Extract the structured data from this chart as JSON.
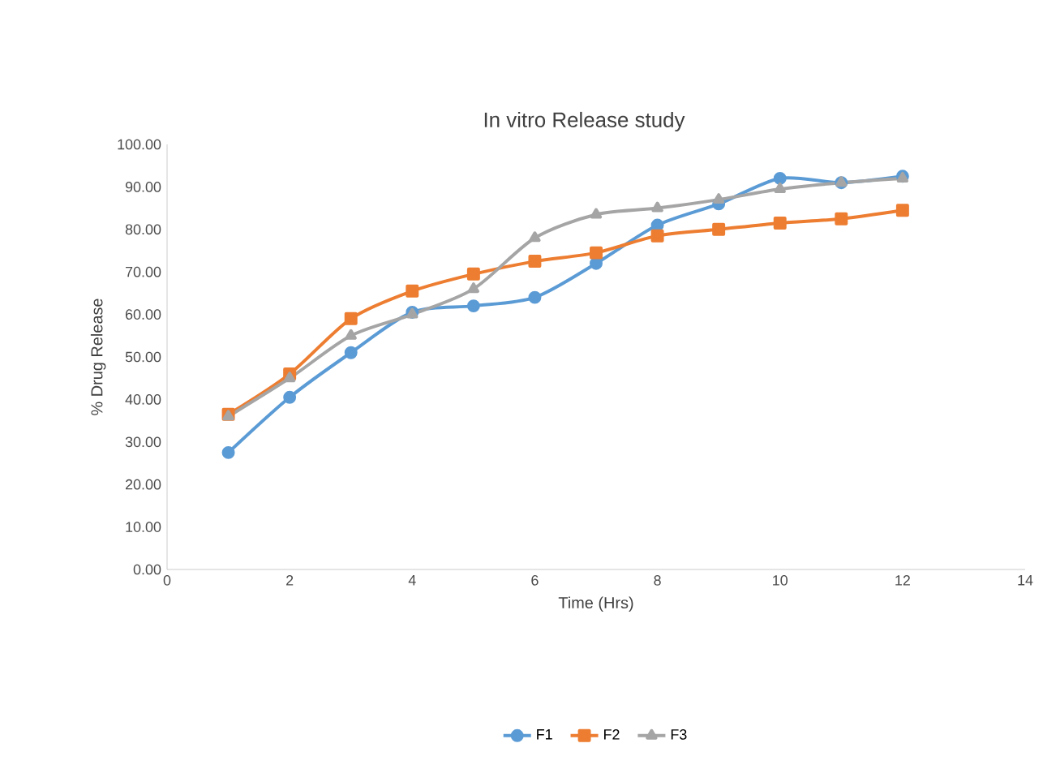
{
  "chart_data": {
    "type": "line",
    "title": "In vitro Release study",
    "xlabel": "Time (Hrs)",
    "ylabel": "% Drug Release",
    "x": [
      1,
      2,
      3,
      4,
      5,
      6,
      7,
      8,
      9,
      10,
      11,
      12
    ],
    "series": [
      {
        "name": "F1",
        "color": "#5b9bd5",
        "marker": "circle",
        "values": [
          27.5,
          40.5,
          51,
          60.5,
          62,
          64,
          72,
          81,
          86,
          92,
          91,
          92.5
        ]
      },
      {
        "name": "F2",
        "color": "#ed7d31",
        "marker": "square",
        "values": [
          36.5,
          46,
          59,
          65.5,
          69.5,
          72.5,
          74.5,
          78.5,
          80,
          81.5,
          82.5,
          84.5
        ]
      },
      {
        "name": "F3",
        "color": "#a5a5a5",
        "marker": "triangle",
        "values": [
          36,
          45,
          55,
          60,
          66,
          78,
          83.5,
          85,
          87,
          89.5,
          91,
          92
        ]
      }
    ],
    "xlim": [
      0,
      14
    ],
    "xticks": [
      0,
      2,
      4,
      6,
      8,
      10,
      12,
      14
    ],
    "ylim": [
      0,
      100
    ],
    "yticks": [
      {
        "value": 0,
        "label": "0.00"
      },
      {
        "value": 10,
        "label": "10.00"
      },
      {
        "value": 20,
        "label": "20.00"
      },
      {
        "value": 30,
        "label": "30.00"
      },
      {
        "value": 40,
        "label": "40.00"
      },
      {
        "value": 50,
        "label": "50.00"
      },
      {
        "value": 60,
        "label": "60.00"
      },
      {
        "value": 70,
        "label": "70.00"
      },
      {
        "value": 80,
        "label": "80.00"
      },
      {
        "value": 90,
        "label": "90.00"
      },
      {
        "value": 100,
        "label": "100.00"
      }
    ],
    "grid": false,
    "legend": "bottom",
    "line_style": "solid"
  }
}
